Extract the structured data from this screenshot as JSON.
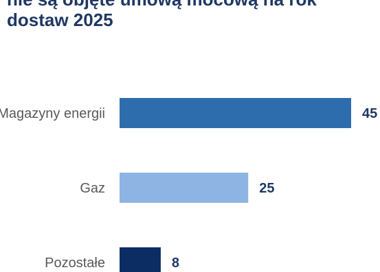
{
  "chart_data": {
    "type": "bar",
    "orientation": "horizontal",
    "title_lines": [
      "nie są objęte umową mocową na rok",
      "dostaw 2025"
    ],
    "categories": [
      "Magazyny energii",
      "Gaz",
      "Pozostałe"
    ],
    "values": [
      45,
      25,
      8
    ],
    "colors": [
      "#2e6dad",
      "#8db4e2",
      "#0b2d64"
    ],
    "value_label_color": "#1f3864",
    "category_label_color": "#595959",
    "grid": false,
    "legend": "none"
  }
}
